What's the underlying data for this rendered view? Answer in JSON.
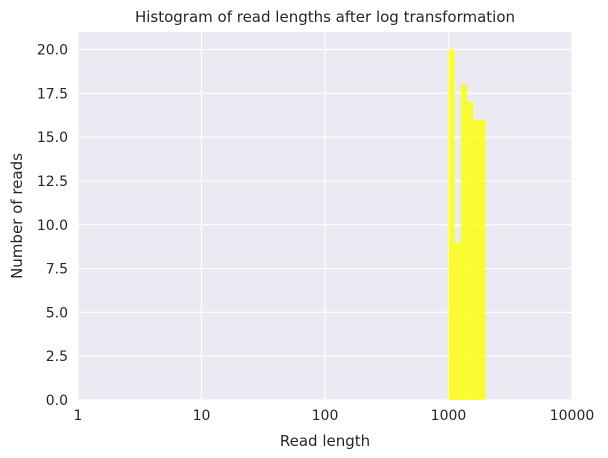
{
  "chart_data": {
    "type": "bar",
    "title": "Histogram of read lengths after log transformation",
    "xlabel": "Read length",
    "ylabel": "Number of reads",
    "xscale": "log",
    "xlim": [
      1,
      10000
    ],
    "ylim": [
      0,
      21
    ],
    "xticks": [
      "1",
      "10",
      "100",
      "1000",
      "10000"
    ],
    "yticks": [
      "0.0",
      "2.5",
      "5.0",
      "7.5",
      "10.0",
      "12.5",
      "15.0",
      "17.5",
      "20.0"
    ],
    "grid": true,
    "bins": [
      {
        "from": 1000,
        "to": 1122,
        "count": 20
      },
      {
        "from": 1122,
        "to": 1259,
        "count": 9
      },
      {
        "from": 1259,
        "to": 1413,
        "count": 18
      },
      {
        "from": 1413,
        "to": 1585,
        "count": 17
      },
      {
        "from": 1585,
        "to": 1778,
        "count": 16
      },
      {
        "from": 1778,
        "to": 1995,
        "count": 16
      }
    ],
    "colors": {
      "bar": "#ffff00",
      "plot_background": "#eaeaf2",
      "grid": "#ffffff"
    }
  }
}
